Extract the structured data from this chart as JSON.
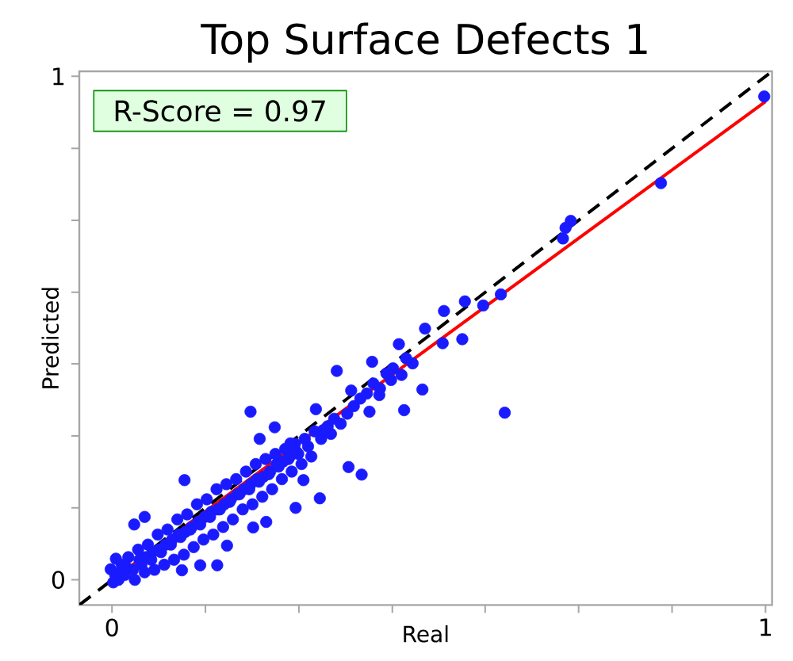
{
  "chart_data": {
    "type": "scatter",
    "title": "Top Surface Defects 1",
    "xlabel": "Real",
    "ylabel": "Predicted",
    "annotations": [
      "R-Score = 0.97"
    ],
    "xlim": [
      -0.05,
      1.01
    ],
    "ylim": [
      -0.05,
      1.01
    ],
    "xticks": [
      0,
      {
        "value": 0.143,
        "label": null
      },
      {
        "value": 0.286,
        "label": null
      },
      {
        "value": 0.429,
        "label": null
      },
      {
        "value": 0.571,
        "label": null
      },
      {
        "value": 0.714,
        "label": null
      },
      {
        "value": 0.857,
        "label": null
      },
      1
    ],
    "yticks": [
      0,
      {
        "value": 0.143,
        "label": null
      },
      {
        "value": 0.286,
        "label": null
      },
      {
        "value": 0.429,
        "label": null
      },
      {
        "value": 0.571,
        "label": null
      },
      {
        "value": 0.714,
        "label": null
      },
      {
        "value": 0.857,
        "label": null
      },
      1
    ],
    "grid": false,
    "series": [
      {
        "color": "#1a1aff",
        "marker": "circle",
        "x": [
          0.012,
          0.022,
          0.032,
          0.042,
          0.052,
          0.062,
          0.072,
          0.082,
          0.092,
          0.102,
          0.112,
          0.122,
          0.132,
          0.142,
          0.152,
          0.162,
          0.172,
          0.182,
          0.192,
          0.202,
          0.212,
          0.222,
          0.232,
          0.242,
          0.252,
          0.262,
          0.272,
          0.282,
          0.005,
          0.01,
          0.015,
          0.02,
          0.025,
          0.035,
          0.04,
          0.045,
          0.05,
          0.055,
          0.06,
          0.065,
          0.07,
          0.075,
          0.08,
          0.085,
          0.09,
          0.095,
          0.1,
          0.105,
          0.11,
          0.115,
          0.12,
          0.125,
          0.13,
          0.135,
          0.14,
          0.145,
          0.15,
          0.155,
          0.16,
          0.165,
          0.17,
          0.175,
          0.18,
          0.185,
          0.19,
          0.195,
          0.2,
          0.205,
          0.21,
          0.215,
          0.22,
          0.225,
          0.23,
          0.235,
          0.24,
          0.245,
          0.25,
          0.255,
          0.26,
          0.265,
          0.27,
          0.275,
          0.28,
          0.285,
          0.29,
          0.295,
          0.3,
          0.305,
          0.31,
          0.32,
          0.33,
          0.335,
          0.34,
          0.35,
          0.36,
          0.37,
          0.38,
          0.39,
          0.4,
          0.41,
          0.42,
          0.43,
          0.45,
          0.46,
          0.998,
          0.84,
          0.702,
          0.69,
          0.694,
          0.601,
          0.595,
          0.568,
          0.54,
          0.508,
          0.536,
          0.506,
          0.479,
          0.475,
          0.439,
          0.443,
          0.447,
          0.398,
          0.427,
          0.409,
          0.344,
          0.366,
          0.394,
          0.212,
          0.312,
          0.323,
          0.362,
          0.382,
          0.318,
          0.281,
          0.293,
          0.249,
          0.226,
          0.273,
          0.236,
          0.216,
          0.176,
          0.161,
          0.135,
          0.107,
          0.111,
          0.05,
          0.034,
          0.006,
          -0.002,
          0.002
        ],
        "values": [
          0.015,
          0.025,
          0.02,
          0.04,
          0.045,
          0.055,
          0.06,
          0.07,
          0.08,
          0.09,
          0.095,
          0.105,
          0.115,
          0.125,
          0.135,
          0.14,
          0.15,
          0.16,
          0.17,
          0.18,
          0.19,
          0.2,
          0.205,
          0.215,
          0.23,
          0.235,
          0.245,
          0.255,
          0.01,
          0.0,
          0.03,
          0.01,
          0.045,
          0.0,
          0.06,
          0.03,
          0.015,
          0.07,
          0.04,
          0.02,
          0.09,
          0.055,
          0.03,
          0.1,
          0.07,
          0.04,
          0.12,
          0.085,
          0.05,
          0.13,
          0.1,
          0.065,
          0.15,
          0.11,
          0.08,
          0.16,
          0.125,
          0.09,
          0.18,
          0.14,
          0.105,
          0.19,
          0.155,
          0.12,
          0.2,
          0.17,
          0.14,
          0.215,
          0.18,
          0.15,
          0.23,
          0.195,
          0.165,
          0.24,
          0.21,
          0.18,
          0.25,
          0.225,
          0.2,
          0.26,
          0.24,
          0.215,
          0.27,
          0.25,
          0.23,
          0.28,
          0.265,
          0.245,
          0.295,
          0.28,
          0.305,
          0.29,
          0.32,
          0.31,
          0.33,
          0.345,
          0.36,
          0.37,
          0.39,
          0.38,
          0.41,
          0.42,
          0.44,
          0.43,
          0.96,
          0.788,
          0.713,
          0.678,
          0.699,
          0.332,
          0.567,
          0.545,
          0.553,
          0.534,
          0.478,
          0.47,
          0.499,
          0.378,
          0.468,
          0.407,
          0.337,
          0.433,
          0.397,
          0.367,
          0.415,
          0.376,
          0.334,
          0.334,
          0.339,
          0.297,
          0.224,
          0.209,
          0.162,
          0.143,
          0.198,
          0.303,
          0.28,
          0.271,
          0.115,
          0.104,
          0.068,
          0.029,
          0.029,
          0.019,
          0.198,
          0.125,
          0.11,
          0.042,
          0.021,
          -0.005
        ]
      },
      {
        "type": "line",
        "color": "#ff0000",
        "marker": "none",
        "line_style": "solid",
        "x": [
          0,
          1
        ],
        "values": [
          0,
          0.95
        ]
      },
      {
        "type": "line",
        "color": "#000000",
        "marker": "none",
        "line_style": "dashed",
        "x": [
          -0.05,
          1.01
        ],
        "values": [
          -0.05,
          1.01
        ]
      }
    ]
  }
}
